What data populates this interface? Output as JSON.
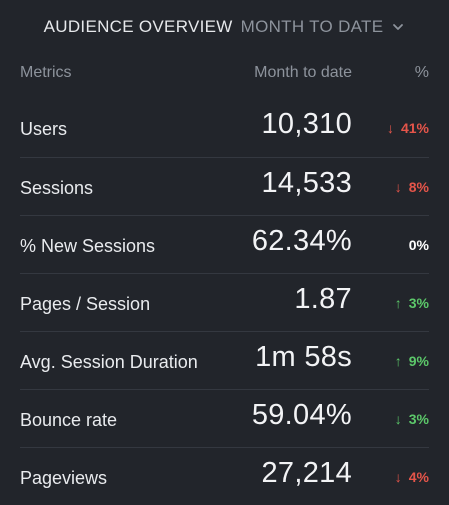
{
  "header": {
    "title": "AUDIENCE OVERVIEW",
    "period": "MONTH TO DATE",
    "period_icon": "chevron-down-icon"
  },
  "columns": {
    "metric": "Metrics",
    "value": "Month to date",
    "change": "%"
  },
  "colors": {
    "background": "#22252b",
    "negative": "#e5554a",
    "positive": "#5cc86a",
    "neutral": "#ffffff"
  },
  "rows": [
    {
      "metric": "Users",
      "value": "10,310",
      "arrow": "↓",
      "change": "41%",
      "trend": "down"
    },
    {
      "metric": "Sessions",
      "value": "14,533",
      "arrow": "↓",
      "change": "8%",
      "trend": "down"
    },
    {
      "metric": "% New Sessions",
      "value": "62.34%",
      "arrow": "",
      "change": "0%",
      "trend": "flat"
    },
    {
      "metric": "Pages / Session",
      "value": "1.87",
      "arrow": "↑",
      "change": "3%",
      "trend": "up"
    },
    {
      "metric": "Avg. Session Duration",
      "value": "1m 58s",
      "arrow": "↑",
      "change": "9%",
      "trend": "up"
    },
    {
      "metric": "Bounce rate",
      "value": "59.04%",
      "arrow": "↓",
      "change": "3%",
      "trend": "up"
    },
    {
      "metric": "Pageviews",
      "value": "27,214",
      "arrow": "↓",
      "change": "4%",
      "trend": "down"
    }
  ]
}
